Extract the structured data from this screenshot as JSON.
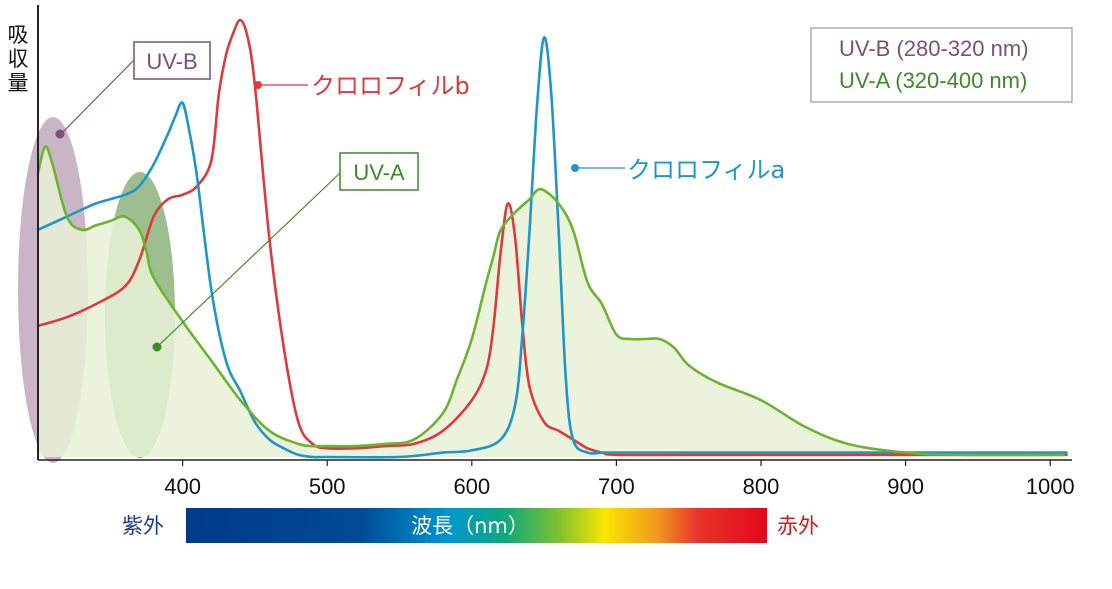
{
  "chart_data": {
    "type": "area",
    "title": "",
    "ylabel": "吸収量",
    "xlabel": "波長（nm）",
    "xlim": [
      300,
      1010
    ],
    "ylim": [
      0,
      100
    ],
    "xticks": [
      "400",
      "500",
      "600",
      "700",
      "800",
      "900",
      "1000"
    ],
    "legend": {
      "position": "top-right",
      "entries": [
        "UV-B (280-320 nm)",
        "UV-A (320-400 nm)"
      ]
    },
    "bands": [
      {
        "name": "UV-B",
        "range": [
          280,
          320
        ]
      },
      {
        "name": "UV-A",
        "range": [
          320,
          400
        ]
      }
    ],
    "spectrum_bar": {
      "left": "紫外",
      "center": "波長（nm）",
      "right": "赤外",
      "range": [
        400,
        800
      ]
    },
    "series": [
      {
        "name": "クロロフィルb",
        "x": [
          300,
          320,
          340,
          360,
          370,
          380,
          390,
          400,
          410,
          420,
          425,
          430,
          435,
          440,
          445,
          450,
          460,
          470,
          480,
          490,
          500,
          520,
          540,
          560,
          580,
          600,
          610,
          615,
          620,
          625,
          630,
          635,
          640,
          650,
          660,
          670,
          680,
          690,
          700,
          750,
          800,
          900,
          1000,
          1010
        ],
        "values": [
          30,
          32,
          35,
          39,
          45,
          55,
          59,
          60,
          62,
          68,
          83,
          92,
          97,
          100,
          96,
          85,
          50,
          25,
          8,
          3,
          2,
          2,
          2.5,
          3,
          6,
          13,
          20,
          30,
          47,
          58,
          50,
          30,
          16,
          8,
          6,
          4,
          2,
          1,
          0.5,
          0.5,
          0.5,
          0.5,
          0.5,
          0.5
        ]
      },
      {
        "name": "クロロフィルa",
        "x": [
          300,
          320,
          340,
          360,
          370,
          380,
          390,
          395,
          400,
          405,
          410,
          420,
          430,
          440,
          450,
          460,
          470,
          480,
          490,
          500,
          550,
          580,
          600,
          620,
          630,
          635,
          640,
          645,
          650,
          655,
          660,
          665,
          670,
          680,
          690,
          700,
          800,
          900,
          1000,
          1010
        ],
        "values": [
          52,
          55,
          58,
          60,
          62,
          67,
          74,
          78,
          81,
          74,
          64,
          38,
          22,
          15,
          8,
          4,
          2,
          0.5,
          0,
          0,
          0,
          1,
          1.5,
          4,
          12,
          28,
          52,
          80,
          96,
          83,
          52,
          18,
          4,
          1,
          1,
          1,
          1,
          1,
          1,
          1
        ]
      },
      {
        "name": "UV",
        "x": [
          300,
          305,
          310,
          320,
          330,
          340,
          350,
          360,
          370,
          375,
          380,
          400,
          420,
          440,
          460,
          480,
          490,
          500,
          520,
          540,
          560,
          580,
          590,
          600,
          610,
          615,
          620,
          630,
          640,
          645,
          650,
          660,
          670,
          680,
          690,
          700,
          710,
          720,
          730,
          740,
          750,
          770,
          800,
          830,
          860,
          900,
          940,
          1010
        ],
        "values": [
          65,
          71,
          67,
          55,
          52,
          53,
          54,
          55,
          52,
          47,
          41,
          31,
          22,
          13,
          6,
          3,
          2.5,
          2.5,
          2.5,
          3,
          4,
          10,
          18,
          27,
          40,
          46,
          52,
          56,
          59,
          61,
          61,
          58,
          52,
          40,
          35,
          28,
          27,
          27,
          27,
          25,
          21,
          17,
          13,
          7,
          3,
          1,
          0.5,
          0.5
        ]
      }
    ]
  }
}
